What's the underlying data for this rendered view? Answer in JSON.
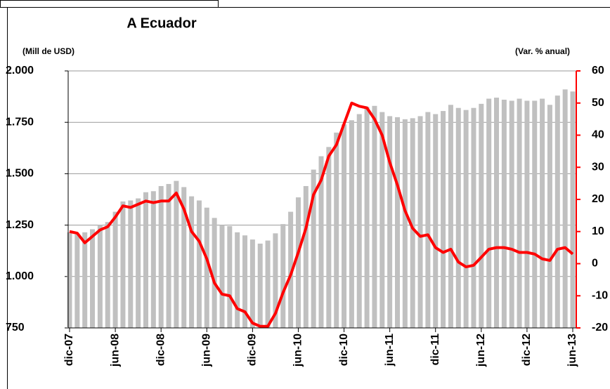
{
  "chart_data": {
    "type": "bar",
    "title": "A Ecuador",
    "y_label": "(Mill de USD)",
    "y2_label": "(Var. % anual)",
    "categories": [
      "dic-07",
      null,
      null,
      null,
      null,
      null,
      "jun-08",
      null,
      null,
      null,
      null,
      null,
      "dic-08",
      null,
      null,
      null,
      null,
      null,
      "jun-09",
      null,
      null,
      null,
      null,
      null,
      "dic-09",
      null,
      null,
      null,
      null,
      null,
      "jun-10",
      null,
      null,
      null,
      null,
      null,
      "dic-10",
      null,
      null,
      null,
      null,
      null,
      "jun-11",
      null,
      null,
      null,
      null,
      null,
      "dic-11",
      null,
      null,
      null,
      null,
      null,
      "jun-12",
      null,
      null,
      null,
      null,
      null,
      "dic-12",
      null,
      null,
      null,
      null,
      null,
      "jun-13"
    ],
    "series": [
      {
        "type": "bar",
        "color": "#c0c0c0",
        "values": [
          1215,
          1205,
          1215,
          1230,
          1250,
          1265,
          1315,
          1365,
          1370,
          1380,
          1410,
          1415,
          1440,
          1450,
          1465,
          1435,
          1390,
          1370,
          1335,
          1285,
          1250,
          1245,
          1215,
          1200,
          1180,
          1160,
          1175,
          1210,
          1255,
          1315,
          1385,
          1440,
          1520,
          1585,
          1630,
          1700,
          1740,
          1760,
          1790,
          1825,
          1830,
          1800,
          1780,
          1775,
          1765,
          1770,
          1780,
          1800,
          1790,
          1805,
          1835,
          1820,
          1810,
          1820,
          1840,
          1865,
          1870,
          1860,
          1855,
          1865,
          1855,
          1855,
          1865,
          1835,
          1880,
          1910,
          1900
        ]
      },
      {
        "type": "line",
        "color": "#ff0000",
        "axis": "y2",
        "values": [
          10,
          9.5,
          6.5,
          8.5,
          10.5,
          11.5,
          14.5,
          18,
          17.5,
          18.5,
          19.5,
          19,
          19.5,
          19.5,
          22,
          17,
          10,
          7,
          1.5,
          -6,
          -9.5,
          -10,
          -14,
          -15,
          -18.5,
          -19.5,
          -19.5,
          -15.5,
          -9,
          -3.5,
          3.5,
          11,
          21.5,
          26,
          33.5,
          37,
          43.5,
          50,
          49,
          48.5,
          45,
          40,
          31.5,
          24.5,
          16.5,
          11,
          8.5,
          9,
          5,
          3.5,
          4.5,
          0.5,
          -1,
          -0.5,
          2,
          4.5,
          5,
          5,
          4.5,
          3.5,
          3.5,
          3,
          1.5,
          1,
          4.5,
          5,
          3
        ]
      }
    ],
    "ylim": [
      750,
      2000
    ],
    "yticks": [
      750,
      {
        "value": 1000,
        "label": "1.000"
      },
      {
        "value": 1250,
        "label": "1.250"
      },
      {
        "value": 1500,
        "label": "1.500"
      },
      {
        "value": 1750,
        "label": "1.750"
      },
      {
        "value": 2000,
        "label": "2.000"
      }
    ],
    "y2lim": [
      -20,
      60
    ],
    "y2ticks": [
      -20,
      -10,
      0,
      10,
      20,
      30,
      40,
      50,
      60
    ],
    "y2_color": "#ff0000",
    "grid": true
  }
}
